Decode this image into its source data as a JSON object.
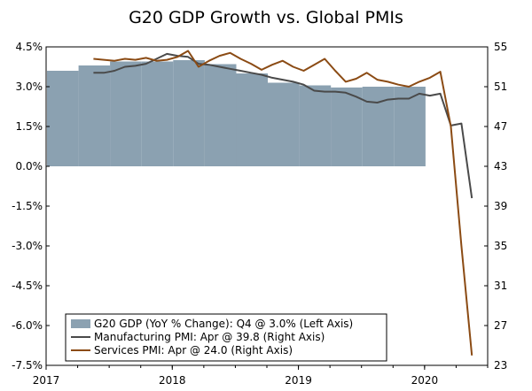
{
  "chart_data": {
    "type": "bar+line",
    "title": "G20 GDP Growth vs. Global PMIs",
    "x_labels": [
      "2017",
      "2018",
      "2019",
      "2020"
    ],
    "left_axis": {
      "ylim": [
        -7.5,
        4.5
      ],
      "ticks": [
        4.5,
        3.0,
        1.5,
        0.0,
        -1.5,
        -3.0,
        -4.5,
        -6.0,
        -7.5
      ],
      "tick_labels": [
        "4.5%",
        "3.0%",
        "1.5%",
        "0.0%",
        "-1.5%",
        "-3.0%",
        "-4.5%",
        "-6.0%",
        "-7.5%"
      ]
    },
    "right_axis": {
      "ylim": [
        23,
        55
      ],
      "ticks": [
        55,
        51,
        47,
        43,
        39,
        35,
        31,
        27,
        23
      ],
      "tick_labels": [
        "55",
        "51",
        "47",
        "43",
        "39",
        "35",
        "31",
        "27",
        "23"
      ]
    },
    "series": [
      {
        "name": "G20 GDP",
        "type": "bar",
        "axis": "left",
        "color": "#8ba1b1",
        "data": [
          {
            "x": 2017.0,
            "value": 3.6
          },
          {
            "x": 2017.25,
            "value": 3.8
          },
          {
            "x": 2017.5,
            "value": 3.95
          },
          {
            "x": 2017.75,
            "value": 3.95
          },
          {
            "x": 2018.0,
            "value": 4.0
          },
          {
            "x": 2018.25,
            "value": 3.85
          },
          {
            "x": 2018.5,
            "value": 3.5
          },
          {
            "x": 2018.75,
            "value": 3.15
          },
          {
            "x": 2019.0,
            "value": 3.05
          },
          {
            "x": 2019.25,
            "value": 2.97
          },
          {
            "x": 2019.5,
            "value": 3.0
          },
          {
            "x": 2019.75,
            "value": 3.0
          }
        ]
      },
      {
        "name": "Manufacturing PMI",
        "type": "line",
        "axis": "right",
        "color": "#4a4a4a",
        "data": [
          {
            "x": 2017.375,
            "value": 52.4
          },
          {
            "x": 2017.458,
            "value": 52.4
          },
          {
            "x": 2017.542,
            "value": 52.6
          },
          {
            "x": 2017.625,
            "value": 53.0
          },
          {
            "x": 2017.708,
            "value": 53.1
          },
          {
            "x": 2017.792,
            "value": 53.3
          },
          {
            "x": 2017.875,
            "value": 53.8
          },
          {
            "x": 2017.958,
            "value": 54.3
          },
          {
            "x": 2018.042,
            "value": 54.1
          },
          {
            "x": 2018.125,
            "value": 54.0
          },
          {
            "x": 2018.208,
            "value": 53.3
          },
          {
            "x": 2018.292,
            "value": 53.2
          },
          {
            "x": 2018.375,
            "value": 53.0
          },
          {
            "x": 2018.458,
            "value": 52.8
          },
          {
            "x": 2018.542,
            "value": 52.6
          },
          {
            "x": 2018.625,
            "value": 52.4
          },
          {
            "x": 2018.708,
            "value": 52.2
          },
          {
            "x": 2018.792,
            "value": 51.9
          },
          {
            "x": 2018.875,
            "value": 51.7
          },
          {
            "x": 2018.958,
            "value": 51.5
          },
          {
            "x": 2019.042,
            "value": 51.2
          },
          {
            "x": 2019.125,
            "value": 50.6
          },
          {
            "x": 2019.208,
            "value": 50.5
          },
          {
            "x": 2019.292,
            "value": 50.5
          },
          {
            "x": 2019.375,
            "value": 50.4
          },
          {
            "x": 2019.458,
            "value": 50.0
          },
          {
            "x": 2019.542,
            "value": 49.5
          },
          {
            "x": 2019.625,
            "value": 49.4
          },
          {
            "x": 2019.708,
            "value": 49.7
          },
          {
            "x": 2019.792,
            "value": 49.8
          },
          {
            "x": 2019.875,
            "value": 49.8
          },
          {
            "x": 2019.958,
            "value": 50.3
          },
          {
            "x": 2020.042,
            "value": 50.1
          },
          {
            "x": 2020.125,
            "value": 50.3
          },
          {
            "x": 2020.208,
            "value": 47.1
          },
          {
            "x": 2020.292,
            "value": 47.3
          },
          {
            "x": 2020.375,
            "value": 39.8
          }
        ]
      },
      {
        "name": "Services PMI",
        "type": "line",
        "axis": "right",
        "color": "#8b4b14",
        "data": [
          {
            "x": 2017.375,
            "value": 53.8
          },
          {
            "x": 2017.458,
            "value": 53.7
          },
          {
            "x": 2017.542,
            "value": 53.6
          },
          {
            "x": 2017.625,
            "value": 53.8
          },
          {
            "x": 2017.708,
            "value": 53.7
          },
          {
            "x": 2017.792,
            "value": 53.9
          },
          {
            "x": 2017.875,
            "value": 53.6
          },
          {
            "x": 2017.958,
            "value": 53.7
          },
          {
            "x": 2018.042,
            "value": 54.0
          },
          {
            "x": 2018.125,
            "value": 54.6
          },
          {
            "x": 2018.208,
            "value": 53.0
          },
          {
            "x": 2018.292,
            "value": 53.6
          },
          {
            "x": 2018.375,
            "value": 54.1
          },
          {
            "x": 2018.458,
            "value": 54.4
          },
          {
            "x": 2018.542,
            "value": 53.8
          },
          {
            "x": 2018.625,
            "value": 53.3
          },
          {
            "x": 2018.708,
            "value": 52.7
          },
          {
            "x": 2018.792,
            "value": 53.2
          },
          {
            "x": 2018.875,
            "value": 53.6
          },
          {
            "x": 2018.958,
            "value": 53.0
          },
          {
            "x": 2019.042,
            "value": 52.6
          },
          {
            "x": 2019.125,
            "value": 53.2
          },
          {
            "x": 2019.208,
            "value": 53.8
          },
          {
            "x": 2019.292,
            "value": 52.6
          },
          {
            "x": 2019.375,
            "value": 51.5
          },
          {
            "x": 2019.458,
            "value": 51.8
          },
          {
            "x": 2019.542,
            "value": 52.4
          },
          {
            "x": 2019.625,
            "value": 51.7
          },
          {
            "x": 2019.708,
            "value": 51.5
          },
          {
            "x": 2019.792,
            "value": 51.2
          },
          {
            "x": 2019.875,
            "value": 51.0
          },
          {
            "x": 2019.958,
            "value": 51.5
          },
          {
            "x": 2020.042,
            "value": 51.9
          },
          {
            "x": 2020.125,
            "value": 52.5
          },
          {
            "x": 2020.208,
            "value": 47.0
          },
          {
            "x": 2020.292,
            "value": 35.0
          },
          {
            "x": 2020.375,
            "value": 24.0
          }
        ]
      }
    ],
    "legend": {
      "position": "bottom-left",
      "entries": [
        {
          "series": "G20 GDP",
          "label": "G20 GDP (YoY % Change): Q4 @ 3.0% (Left Axis)"
        },
        {
          "series": "Manufacturing PMI",
          "label": "Manufacturing PMI: Apr @ 39.8 (Right Axis)"
        },
        {
          "series": "Services PMI",
          "label": "Services PMI: Apr @ 24.0 (Right Axis)"
        }
      ]
    }
  }
}
